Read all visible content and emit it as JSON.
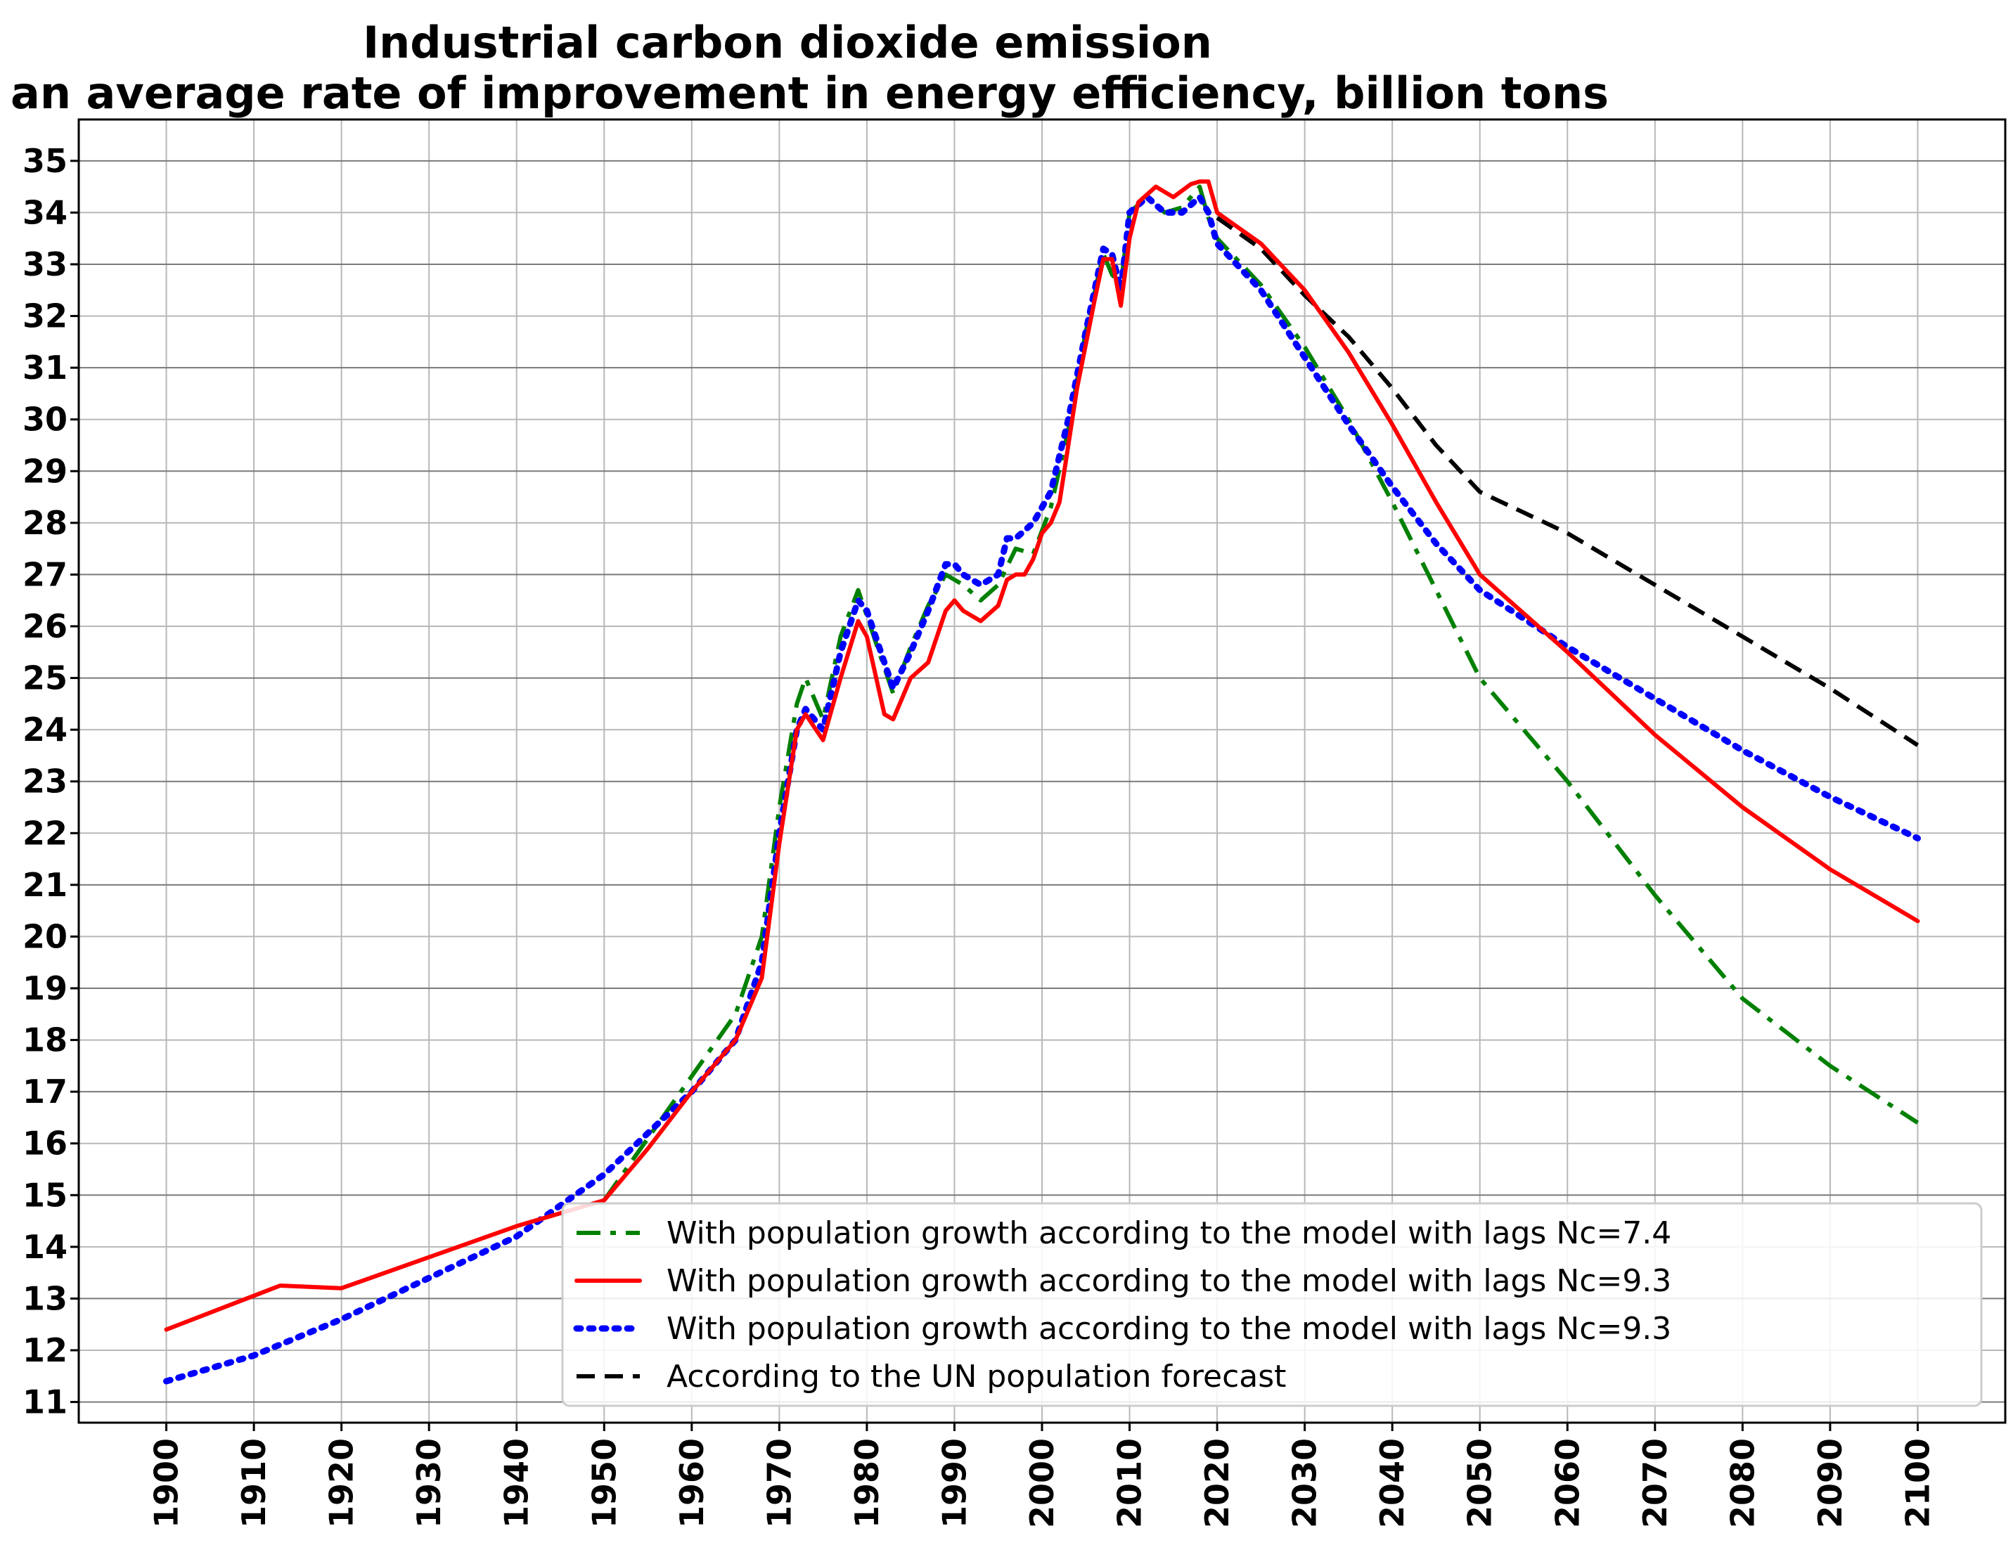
{
  "chart_data": {
    "type": "line",
    "title": "Industrial carbon dioxide emission",
    "subtitle": "at an average rate of improvement in energy efficiency, billion tons",
    "xlabel": "",
    "ylabel": "",
    "xlim": [
      1890,
      2110
    ],
    "ylim": [
      10.6,
      35.8
    ],
    "grid": true,
    "legend_position": "bottom-right",
    "x_ticks": [
      "1900",
      "1910",
      "1920",
      "1930",
      "1940",
      "1950",
      "1960",
      "1970",
      "1980",
      "1990",
      "2000",
      "2010",
      "2020",
      "2030",
      "2040",
      "2050",
      "2060",
      "2070",
      "2080",
      "2090",
      "2100"
    ],
    "y_ticks": [
      "11",
      "12",
      "13",
      "14",
      "15",
      "16",
      "17",
      "18",
      "19",
      "20",
      "21",
      "22",
      "23",
      "24",
      "25",
      "26",
      "27",
      "28",
      "29",
      "30",
      "31",
      "32",
      "33",
      "34",
      "35"
    ],
    "series": [
      {
        "name": "With population growth according to the model with lags Nc=7.4",
        "color": "#008000",
        "style": "dashdot",
        "x": [
          1950,
          1955,
          1960,
          1965,
          1968,
          1970,
          1972,
          1973,
          1975,
          1977,
          1979,
          1980,
          1983,
          1985,
          1987,
          1989,
          1991,
          1993,
          1995,
          1997,
          1999,
          2001,
          2003,
          2005,
          2007,
          2008,
          2009,
          2010,
          2012,
          2014,
          2016,
          2018,
          2019,
          2020,
          2025,
          2030,
          2035,
          2040,
          2045,
          2050,
          2060,
          2070,
          2080,
          2090,
          2100
        ],
        "y": [
          14.9,
          16.1,
          17.3,
          18.5,
          20.0,
          22.5,
          24.5,
          25.0,
          24.2,
          25.8,
          26.7,
          26.2,
          24.7,
          25.6,
          26.4,
          27.0,
          26.8,
          26.5,
          26.8,
          27.5,
          27.4,
          28.3,
          29.8,
          31.7,
          33.2,
          32.8,
          32.6,
          34.0,
          34.3,
          34.0,
          34.1,
          34.5,
          33.9,
          33.5,
          32.6,
          31.4,
          30.0,
          28.4,
          26.7,
          25.0,
          23.0,
          20.8,
          18.8,
          17.5,
          16.4
        ]
      },
      {
        "name": "With population growth according to the model with lags  Nc=9.3",
        "color": "#ff0000",
        "style": "solid",
        "x": [
          1900,
          1913,
          1920,
          1930,
          1940,
          1950,
          1955,
          1960,
          1965,
          1968,
          1970,
          1972,
          1973,
          1975,
          1977,
          1979,
          1980,
          1982,
          1983,
          1985,
          1987,
          1989,
          1990,
          1991,
          1993,
          1995,
          1996,
          1997,
          1998,
          1999,
          2000,
          2001,
          2002,
          2003,
          2004,
          2006,
          2007,
          2008,
          2009,
          2010,
          2011,
          2013,
          2015,
          2017,
          2018,
          2019,
          2020,
          2025,
          2030,
          2035,
          2040,
          2045,
          2050,
          2060,
          2070,
          2080,
          2090,
          2100
        ],
        "y": [
          12.4,
          13.25,
          13.2,
          13.8,
          14.4,
          14.9,
          15.9,
          17.0,
          18.0,
          19.2,
          21.8,
          24.0,
          24.3,
          23.8,
          25.0,
          26.1,
          25.8,
          24.3,
          24.2,
          25.0,
          25.3,
          26.3,
          26.5,
          26.3,
          26.1,
          26.4,
          26.9,
          27.0,
          27.0,
          27.3,
          27.8,
          28.0,
          28.4,
          29.5,
          30.6,
          32.3,
          33.1,
          33.1,
          32.2,
          33.5,
          34.2,
          34.5,
          34.3,
          34.55,
          34.6,
          34.6,
          34.0,
          33.4,
          32.5,
          31.3,
          29.9,
          28.4,
          27.0,
          25.5,
          23.9,
          22.5,
          21.3,
          20.3
        ]
      },
      {
        "name": "With population growth according to the model with lags  Nc=9.3",
        "color": "#0000ff",
        "style": "dotted",
        "x": [
          1900,
          1910,
          1920,
          1930,
          1940,
          1950,
          1955,
          1960,
          1965,
          1968,
          1970,
          1972,
          1973,
          1975,
          1977,
          1979,
          1980,
          1983,
          1985,
          1987,
          1989,
          1990,
          1991,
          1993,
          1995,
          1996,
          1997,
          1999,
          2001,
          2003,
          2005,
          2007,
          2008,
          2009,
          2010,
          2012,
          2014,
          2016,
          2018,
          2019,
          2020,
          2025,
          2030,
          2035,
          2040,
          2045,
          2050,
          2060,
          2070,
          2080,
          2090,
          2100
        ],
        "y": [
          11.4,
          11.9,
          12.6,
          13.4,
          14.2,
          15.4,
          16.2,
          17.0,
          18.0,
          19.5,
          22.0,
          24.0,
          24.4,
          24.0,
          25.5,
          26.5,
          26.3,
          24.8,
          25.5,
          26.3,
          27.2,
          27.2,
          27.0,
          26.8,
          27.0,
          27.7,
          27.7,
          28.0,
          28.6,
          30.0,
          31.7,
          33.3,
          33.2,
          32.5,
          34.0,
          34.3,
          34.0,
          34.0,
          34.3,
          34.0,
          33.4,
          32.5,
          31.2,
          29.9,
          28.7,
          27.6,
          26.7,
          25.6,
          24.6,
          23.6,
          22.7,
          21.9
        ]
      },
      {
        "name": "According to the UN population forecast",
        "color": "#000000",
        "style": "dashed",
        "x": [
          2020,
          2025,
          2030,
          2035,
          2040,
          2045,
          2050,
          2060,
          2070,
          2080,
          2090,
          2100
        ],
        "y": [
          33.9,
          33.3,
          32.4,
          31.6,
          30.6,
          29.5,
          28.6,
          27.8,
          26.8,
          25.8,
          24.8,
          23.7
        ]
      }
    ]
  }
}
